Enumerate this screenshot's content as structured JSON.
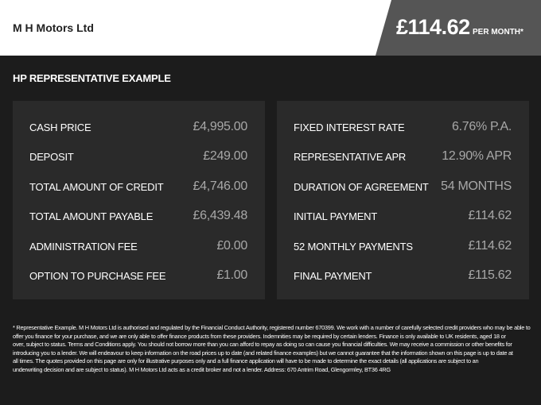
{
  "header": {
    "dealer": "M H Motors Ltd",
    "price": "£114.62",
    "price_suffix": "PER MONTH*"
  },
  "section_title": "HP REPRESENTATIVE EXAMPLE",
  "left_panel": {
    "rows": [
      {
        "label": "CASH PRICE",
        "value": "£4,995.00"
      },
      {
        "label": "DEPOSIT",
        "value": "£249.00"
      },
      {
        "label": "TOTAL AMOUNT OF CREDIT",
        "value": "£4,746.00"
      },
      {
        "label": "TOTAL AMOUNT PAYABLE",
        "value": "£6,439.48"
      },
      {
        "label": "ADMINISTRATION FEE",
        "value": "£0.00"
      },
      {
        "label": "OPTION TO PURCHASE FEE",
        "value": "£1.00"
      }
    ]
  },
  "right_panel": {
    "rows": [
      {
        "label": "FIXED INTEREST RATE",
        "value": "6.76% P.A."
      },
      {
        "label": "REPRESENTATIVE APR",
        "value": "12.90% APR"
      },
      {
        "label": "DURATION OF AGREEMENT",
        "value": "54 MONTHS"
      },
      {
        "label": "INITIAL PAYMENT",
        "value": "£114.62"
      },
      {
        "label": "52 MONTHLY PAYMENTS",
        "value": "£114.62"
      },
      {
        "label": "FINAL PAYMENT",
        "value": "£115.62"
      }
    ]
  },
  "footnote": {
    "lines": [
      "* Representative Example. M H Motors Ltd is authorised and regulated by the Financial Conduct Authority, registered number 670399. We work with a number of carefully selected credit providers who may be able to",
      "offer you finance for your purchase, and we are only able to offer finance products from these providers. Indemnities may be required by certain lenders. Finance is only available to UK residents, aged 18 or",
      "over, subject to status. Terms and Conditions apply. You should not borrow more than you can afford to repay as doing so can cause you financial difficulties. We may receive a commission or other benefits for",
      "introducing you to a lender. We will endeavour to keep information on the road prices up to date (and related finance examples) but we cannot guarantee that the information shown on this page is up to date at",
      "all times. The quotes provided on this page are only for illustrative purposes only and a full finance application will have to be made to determine the exact details (all applications are subject to an",
      "underwriting decision and are subject to status). M H Motors Ltd acts as a credit broker and not a lender. Address: 670 Antrim Road, Glengormley, BT36 4RG"
    ]
  }
}
